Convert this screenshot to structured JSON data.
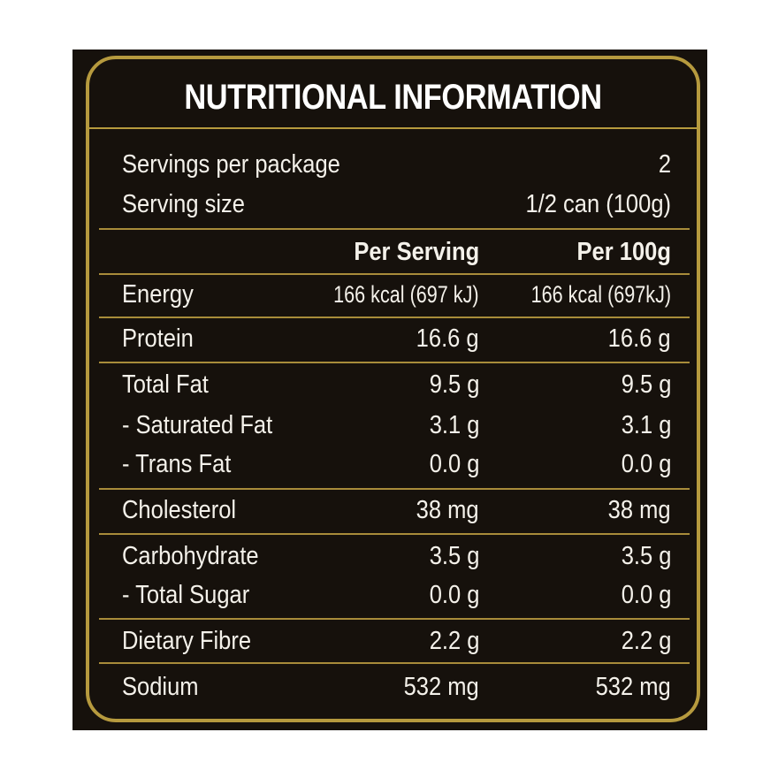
{
  "title": "NUTRITIONAL INFORMATION",
  "servings": {
    "per_package_label": "Servings per package",
    "per_package_value": "2",
    "size_label": "Serving size",
    "size_value": "1/2 can (100g)"
  },
  "columns": {
    "per_serving": "Per Serving",
    "per_100g": "Per 100g"
  },
  "rows": [
    {
      "name": "Energy",
      "per_serving": "166 kcal (697 kJ)",
      "per_100g": "166 kcal (697kJ)"
    },
    {
      "name": "Protein",
      "per_serving": "16.6 g",
      "per_100g": "16.6 g"
    },
    {
      "name": "Total Fat",
      "per_serving": "9.5 g",
      "per_100g": "9.5 g"
    },
    {
      "name": "- Saturated Fat",
      "per_serving": "3.1 g",
      "per_100g": "3.1 g"
    },
    {
      "name": "- Trans Fat",
      "per_serving": "0.0 g",
      "per_100g": "0.0 g"
    },
    {
      "name": "Cholesterol",
      "per_serving": "38 mg",
      "per_100g": "38 mg"
    },
    {
      "name": "Carbohydrate",
      "per_serving": "3.5 g",
      "per_100g": "3.5 g"
    },
    {
      "name": "- Total Sugar",
      "per_serving": "0.0 g",
      "per_100g": "0.0 g"
    },
    {
      "name": "Dietary Fibre",
      "per_serving": "2.2 g",
      "per_100g": "2.2 g"
    },
    {
      "name": "Sodium",
      "per_serving": "532 mg",
      "per_100g": "532 mg"
    }
  ],
  "colors": {
    "background": "#16110c",
    "gold": "#b69a3e",
    "text": "#f4f1ea"
  }
}
